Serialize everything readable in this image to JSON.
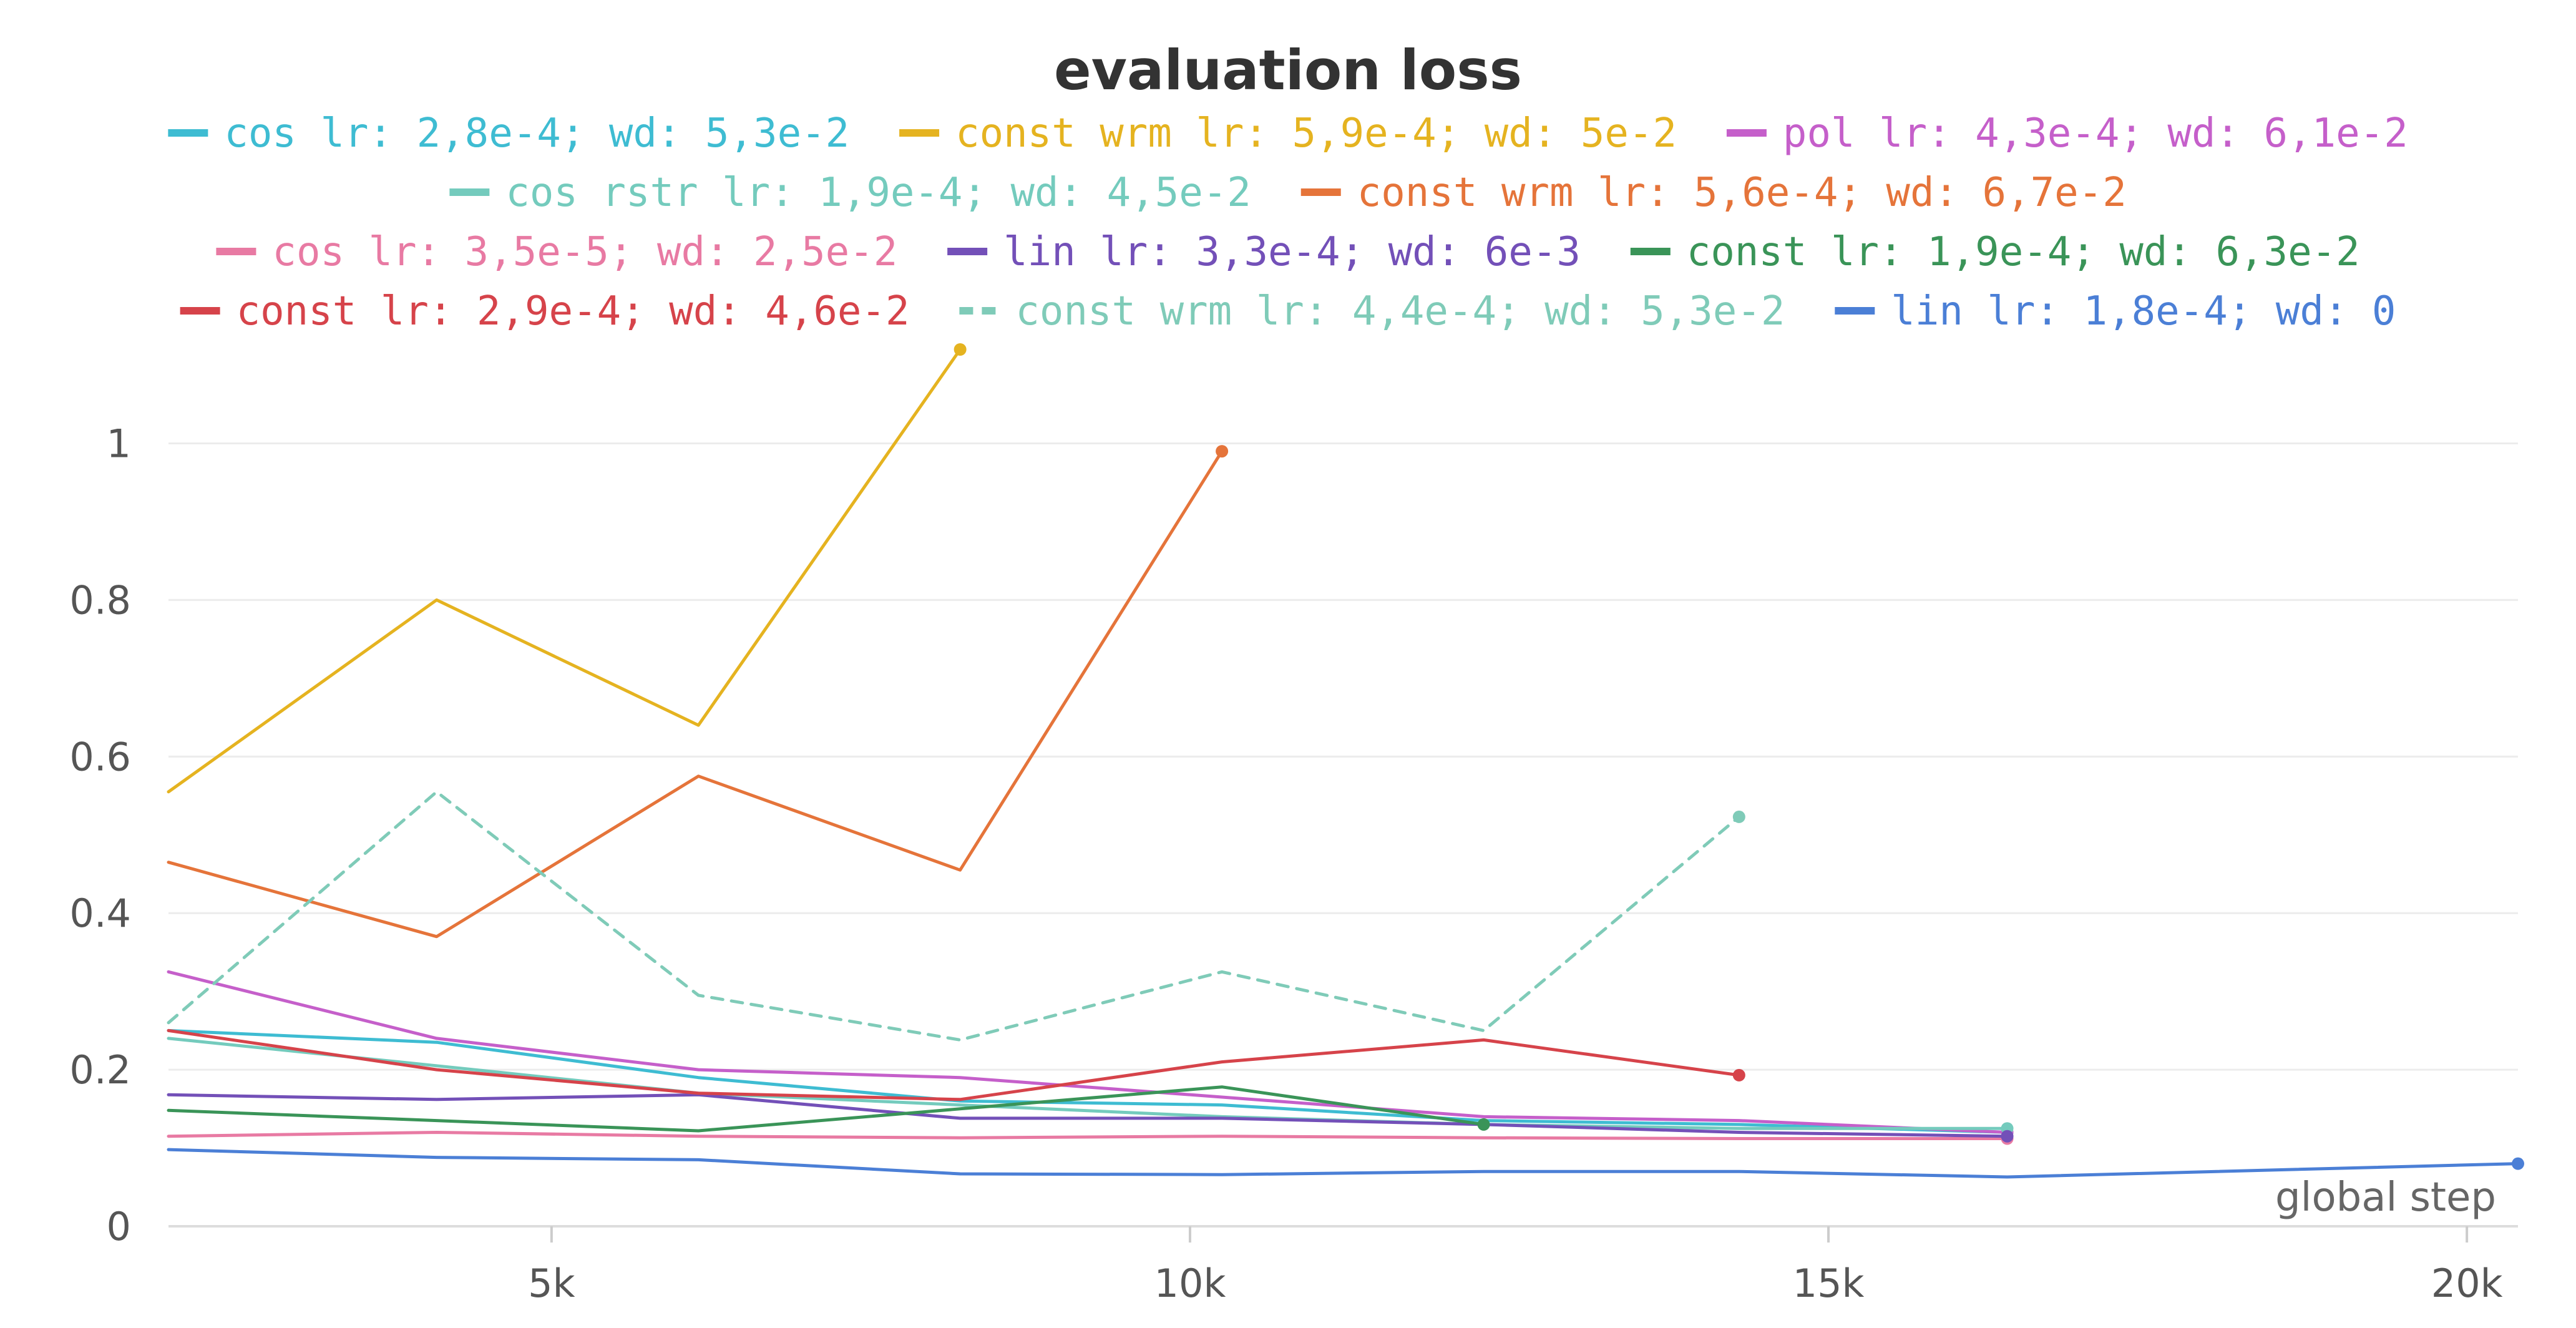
{
  "chart_data": {
    "type": "line",
    "title": "evaluation loss",
    "xlabel": "global step",
    "ylabel": "",
    "xlim": [
      2000,
      20400
    ],
    "ylim": [
      0,
      1.12
    ],
    "x_ticks": [
      5000,
      10000,
      15000,
      20000
    ],
    "x_tick_labels": [
      "5k",
      "10k",
      "15k",
      "20k"
    ],
    "y_ticks": [
      0,
      0.2,
      0.4,
      0.6,
      0.8,
      1
    ],
    "y_tick_labels": [
      "0",
      "0.2",
      "0.4",
      "0.6",
      "0.8",
      "1"
    ],
    "grid": true,
    "legend_position": "top",
    "series": [
      {
        "name": "cos lr: 2,8e-4; wd: 5,3e-2",
        "color": "#3ebcd2",
        "dashed": false,
        "x": [
          2000,
          4100,
          6150,
          8200,
          10250,
          12300,
          14300,
          16400
        ],
        "y": [
          0.25,
          0.235,
          0.19,
          0.16,
          0.155,
          0.135,
          0.13,
          0.12
        ]
      },
      {
        "name": "const wrm lr: 5,9e-4; wd: 5e-2",
        "color": "#e5b320",
        "dashed": false,
        "x": [
          2000,
          4100,
          6150,
          8200
        ],
        "y": [
          0.555,
          0.8,
          0.64,
          1.12
        ]
      },
      {
        "name": "pol lr: 4,3e-4; wd: 6,1e-2",
        "color": "#c55fca",
        "dashed": false,
        "x": [
          2000,
          4100,
          6150,
          8200,
          10250,
          12300,
          14300,
          16400
        ],
        "y": [
          0.325,
          0.24,
          0.2,
          0.19,
          0.165,
          0.14,
          0.135,
          0.12
        ]
      },
      {
        "name": "cos rstr lr: 1,9e-4; wd: 4,5e-2",
        "color": "#74cbbd",
        "dashed": false,
        "x": [
          2000,
          4100,
          6150,
          8200,
          10250,
          12300,
          14300,
          16400
        ],
        "y": [
          0.24,
          0.205,
          0.17,
          0.155,
          0.14,
          0.13,
          0.125,
          0.125
        ]
      },
      {
        "name": "const wrm lr: 5,6e-4; wd: 6,7e-2",
        "color": "#e5743a",
        "dashed": false,
        "x": [
          2000,
          4100,
          6150,
          8200,
          10250
        ],
        "y": [
          0.465,
          0.37,
          0.575,
          0.455,
          0.99
        ]
      },
      {
        "name": "cos lr: 3,5e-5; wd: 2,5e-2",
        "color": "#e87aa3",
        "dashed": false,
        "x": [
          2000,
          4100,
          6150,
          8200,
          10250,
          12300,
          14300,
          16400
        ],
        "y": [
          0.115,
          0.12,
          0.115,
          0.113,
          0.115,
          0.113,
          0.112,
          0.112
        ]
      },
      {
        "name": "lin lr: 3,3e-4; wd: 6e-3",
        "color": "#7350b8",
        "dashed": false,
        "x": [
          2000,
          4100,
          6150,
          8200,
          10250,
          12300,
          14300,
          16400
        ],
        "y": [
          0.168,
          0.162,
          0.168,
          0.138,
          0.138,
          0.13,
          0.12,
          0.115
        ]
      },
      {
        "name": "const lr: 1,9e-4; wd: 6,3e-2",
        "color": "#3a9458",
        "dashed": false,
        "x": [
          2000,
          4100,
          6150,
          8200,
          10250,
          12300
        ],
        "y": [
          0.148,
          0.135,
          0.122,
          0.15,
          0.178,
          0.13
        ]
      },
      {
        "name": "const lr: 2,9e-4; wd: 4,6e-2",
        "color": "#d6434a",
        "dashed": false,
        "x": [
          2000,
          4100,
          6150,
          8200,
          10250,
          12300,
          14300
        ],
        "y": [
          0.25,
          0.2,
          0.17,
          0.162,
          0.21,
          0.238,
          0.193
        ]
      },
      {
        "name": "const wrm lr: 4,4e-4; wd: 5,3e-2",
        "color": "#7fcbb8",
        "dashed": true,
        "x": [
          2000,
          4100,
          6150,
          8200,
          10250,
          12300,
          14300
        ],
        "y": [
          0.26,
          0.555,
          0.295,
          0.238,
          0.325,
          0.25,
          0.523
        ]
      },
      {
        "name": "lin lr: 1,8e-4; wd: 0",
        "color": "#4b7fd6",
        "dashed": false,
        "x": [
          2000,
          4100,
          6150,
          8200,
          10250,
          12300,
          14300,
          16400,
          20400
        ],
        "y": [
          0.098,
          0.088,
          0.085,
          0.067,
          0.066,
          0.07,
          0.07,
          0.063,
          0.08
        ]
      }
    ]
  }
}
